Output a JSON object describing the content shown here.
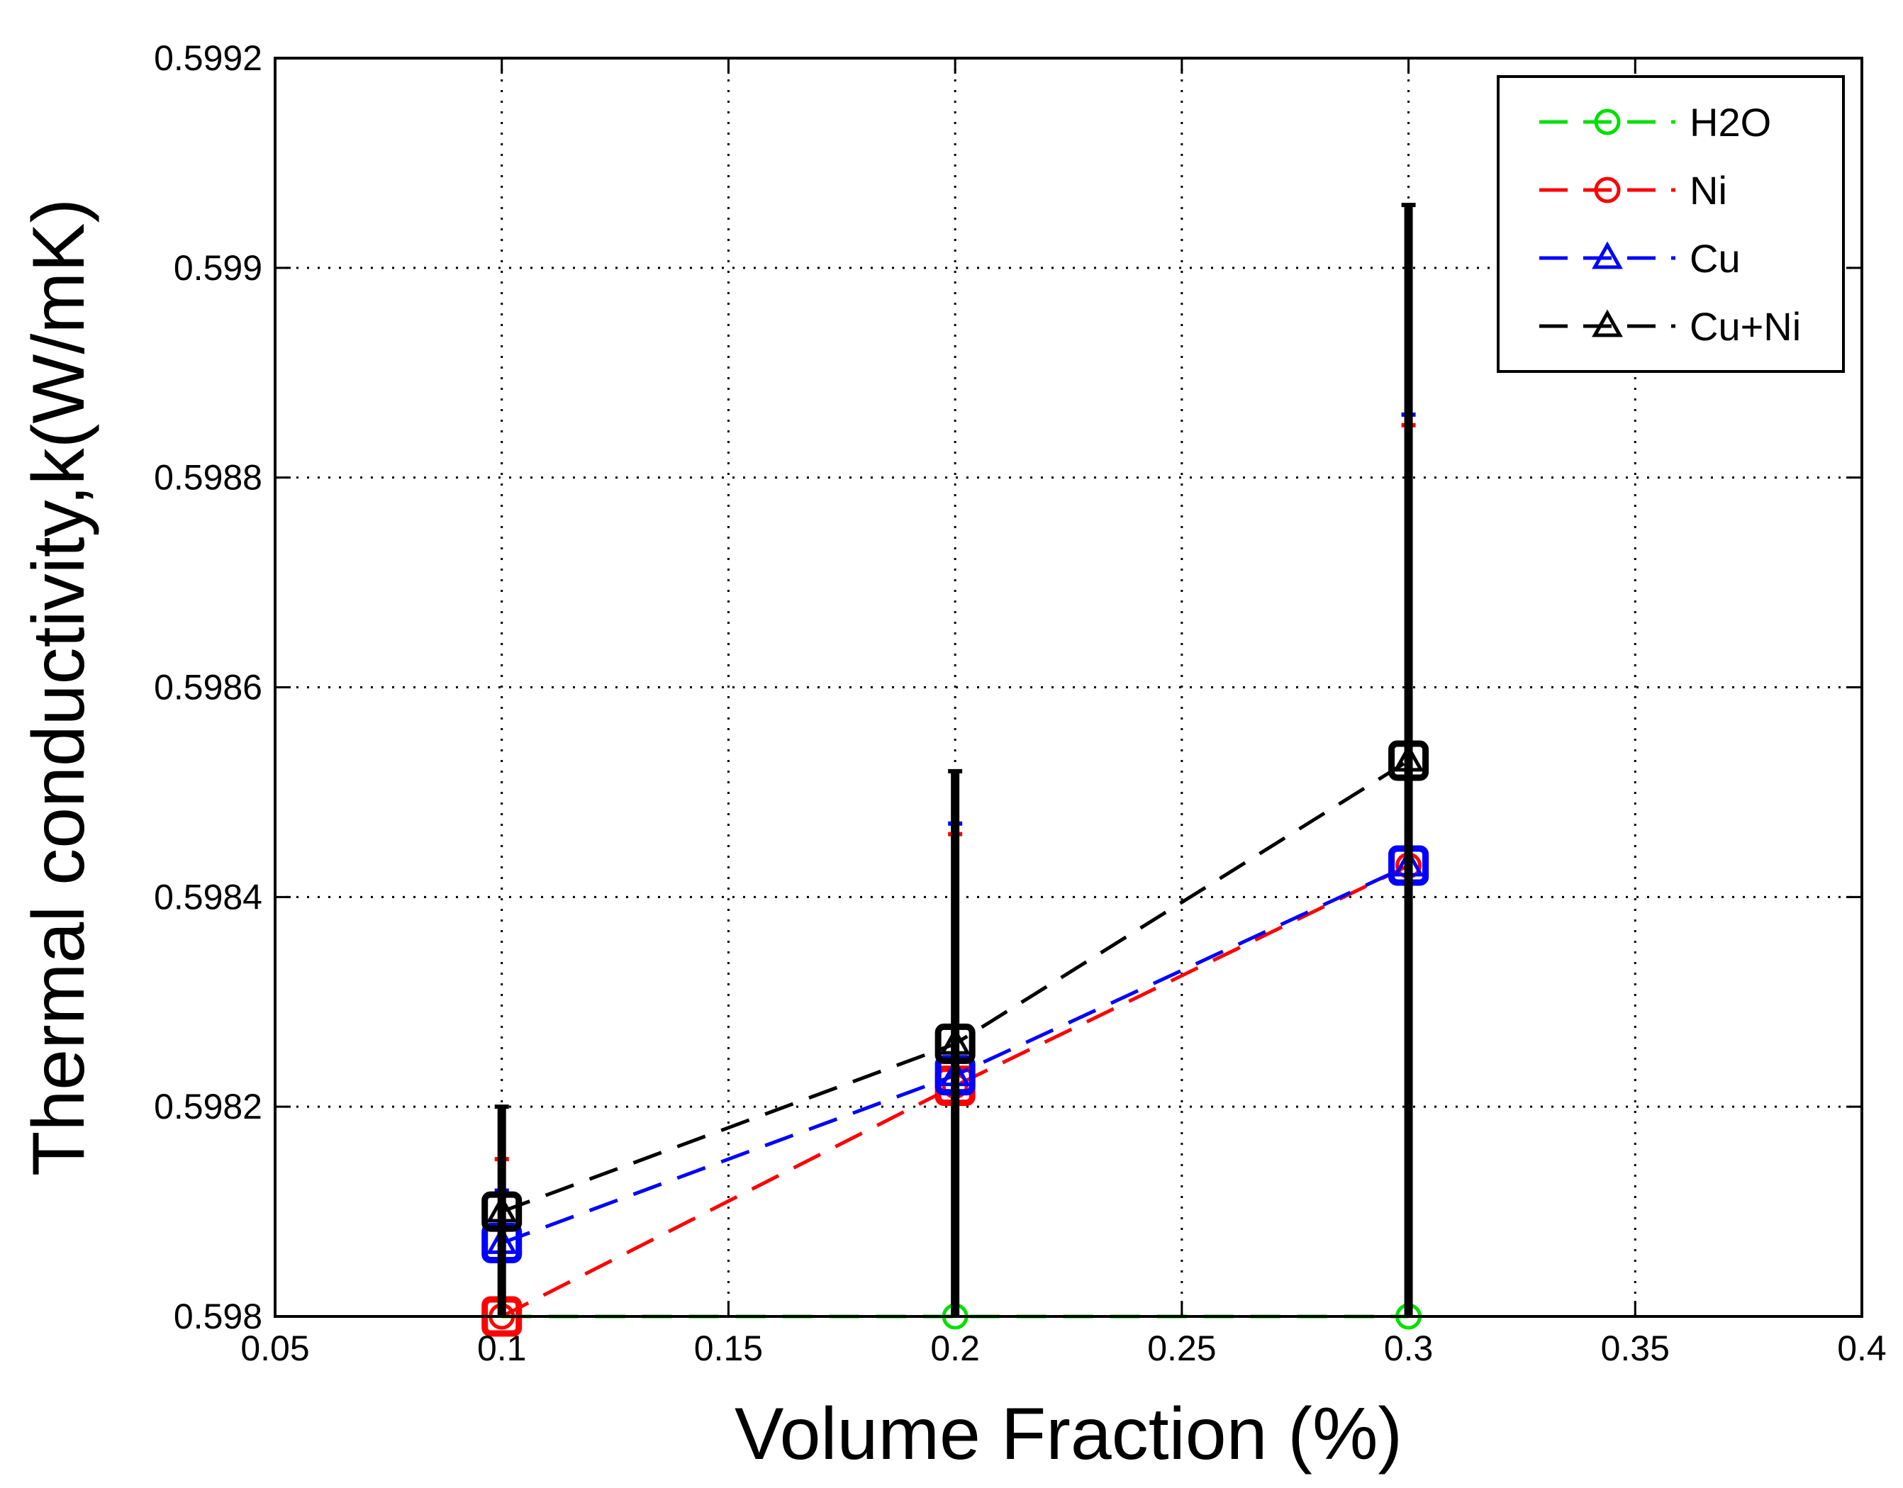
{
  "chart_data": {
    "type": "line",
    "title": "",
    "xlabel": "Volume Fraction (%)",
    "ylabel": "Thermal conductivity,k(W/mK)",
    "xlim": [
      0.05,
      0.4
    ],
    "ylim": [
      0.598,
      0.5992
    ],
    "xticks": [
      0.05,
      0.1,
      0.15,
      0.2,
      0.25,
      0.3,
      0.35,
      0.4
    ],
    "xtick_labels": [
      "0.05",
      "0.1",
      "0.15",
      "0.2",
      "0.25",
      "0.3",
      "0.35",
      "0.4"
    ],
    "yticks": [
      0.598,
      0.5982,
      0.5984,
      0.5986,
      0.5988,
      0.599,
      0.5992
    ],
    "ytick_labels": [
      "0.598",
      "0.5982",
      "0.5984",
      "0.5986",
      "0.5988",
      "0.599",
      "0.5992"
    ],
    "grid": true,
    "legend_position": "top-right",
    "x": [
      0.1,
      0.2,
      0.3
    ],
    "series": [
      {
        "name": "H2O",
        "color": "#00e000",
        "marker": "circle",
        "values": [
          0.598,
          0.598,
          0.598
        ],
        "err_high": [
          0.598,
          0.598,
          0.598
        ]
      },
      {
        "name": "Ni",
        "color": "#ff0000",
        "marker": "circle",
        "values": [
          0.598,
          0.59822,
          0.59843
        ],
        "err_high": [
          0.59815,
          0.59846,
          0.59885
        ]
      },
      {
        "name": "Cu",
        "color": "#0000ff",
        "marker": "triangle",
        "values": [
          0.59807,
          0.59823,
          0.59843
        ],
        "err_high": [
          0.59812,
          0.59847,
          0.59886
        ]
      },
      {
        "name": "Cu+Ni",
        "color": "#000000",
        "marker": "triangle",
        "values": [
          0.5981,
          0.59826,
          0.59853
        ],
        "err_high": [
          0.5982,
          0.59852,
          0.59906
        ]
      }
    ]
  }
}
